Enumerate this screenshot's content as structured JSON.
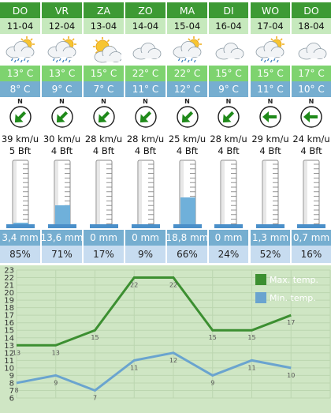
{
  "days": [
    "DO",
    "VR",
    "ZA",
    "ZO",
    "MA",
    "DI",
    "WO",
    "DO"
  ],
  "dates": [
    "11-04",
    "12-04",
    "13-04",
    "14-04",
    "15-04",
    "16-04",
    "17-04",
    "18-04"
  ],
  "weather_icons": [
    "cloud-sun-rain-icon",
    "cloud-sun-rain-icon",
    "sun-cloud-icon",
    "cloud-icon",
    "cloud-sun-rain-icon",
    "cloud-icon",
    "cloud-sun-rain-icon",
    "cloud-icon"
  ],
  "temp_max": [
    "13° C",
    "13° C",
    "15° C",
    "22° C",
    "22° C",
    "15° C",
    "15° C",
    "17° C"
  ],
  "temp_min": [
    "8° C",
    "9° C",
    "7° C",
    "11° C",
    "12° C",
    "9° C",
    "11° C",
    "10° C"
  ],
  "wind_direction_label": "N",
  "wind_directions": [
    "SW",
    "SW",
    "SW",
    "SW",
    "SW",
    "SW",
    "W",
    "W"
  ],
  "wind_speed": [
    "39 km/u",
    "30 km/u",
    "28 km/u",
    "28 km/u",
    "25 km/u",
    "28 km/u",
    "29 km/u",
    "24 km/u"
  ],
  "wind_bft": [
    "5 Bft",
    "4 Bft",
    "4 Bft",
    "4 Bft",
    "4 Bft",
    "4 Bft",
    "4 Bft",
    "4 Bft"
  ],
  "rain_fill_fraction": [
    0.06,
    0.34,
    0,
    0,
    0.47,
    0,
    0.03,
    0.01
  ],
  "rain_mm": [
    "3,4 mm",
    "13,6 mm",
    "0 mm",
    "0 mm",
    "18,8 mm",
    "0 mm",
    "1,3 mm",
    "0,7 mm"
  ],
  "rain_chance": [
    "85%",
    "71%",
    "17%",
    "9%",
    "66%",
    "24%",
    "52%",
    "16%"
  ],
  "colors": {
    "day_header": "#3d9a34",
    "date_row": "#c6e9bd",
    "temp_max_bg": "#7ed36f",
    "temp_min_bg": "#76aed0",
    "percent_bg": "#c7dcf0",
    "chart_bg": "#cfe6c4",
    "max_line": "#3c8f31",
    "min_line": "#6aa4cf",
    "arrow": "#1f8a1a"
  },
  "chart_data": {
    "type": "line",
    "categories": [
      "11-04",
      "12-04",
      "13-04",
      "14-04",
      "15-04",
      "16-04",
      "17-04",
      "18-04"
    ],
    "series": [
      {
        "name": "Max. temp.",
        "values": [
          13,
          13,
          15,
          22,
          22,
          15,
          15,
          17
        ]
      },
      {
        "name": "Min. temp.",
        "values": [
          8,
          9,
          7,
          11,
          12,
          9,
          11,
          10
        ]
      }
    ],
    "y_ticks": [
      "23",
      "22",
      "21",
      "20",
      "19",
      "18",
      "17",
      "16",
      "15",
      "14",
      "13",
      "12",
      "11",
      "10",
      "9",
      "8",
      "7",
      "6"
    ],
    "ylim": [
      6,
      23
    ],
    "legend_position": "top-right",
    "grid": true
  }
}
